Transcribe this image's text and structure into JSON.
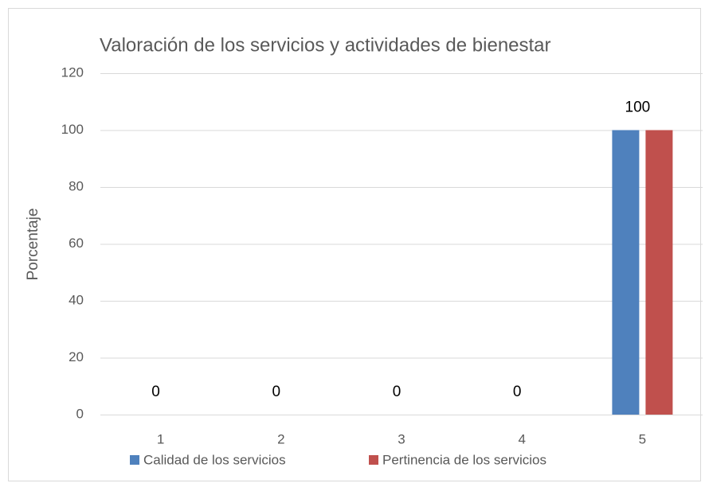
{
  "chart_data": {
    "type": "bar",
    "title": "Valoración de los servicios y actividades de bienestar",
    "y_label": "Porcentaje",
    "categories": [
      "1",
      "2",
      "3",
      "4",
      "5"
    ],
    "series": [
      {
        "name": "Calidad de los servicios",
        "color": "#4f81bd",
        "values": [
          0,
          0,
          0,
          0,
          100
        ]
      },
      {
        "name": "Pertinencia de los servicios",
        "color": "#c0504d",
        "values": [
          0,
          0,
          0,
          0,
          100
        ]
      }
    ],
    "ylim": [
      0,
      120
    ],
    "yticks": [
      0,
      20,
      40,
      60,
      80,
      100,
      120
    ],
    "grid": true,
    "legend": "bottom"
  }
}
